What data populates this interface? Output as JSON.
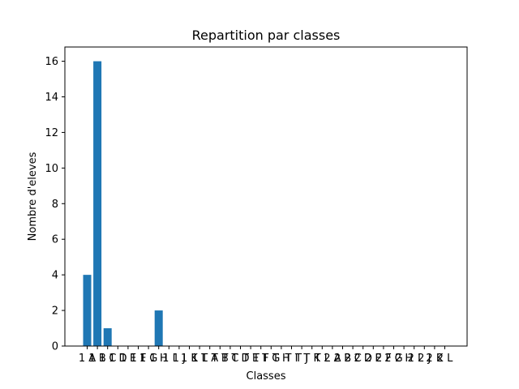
{
  "chart_data": {
    "type": "bar",
    "title": "Repartition par classes",
    "xlabel": "Classes",
    "ylabel": "Nombre d'eleves",
    "ylim": [
      0,
      16.8
    ],
    "yticks": [
      0,
      2,
      4,
      6,
      8,
      10,
      12,
      14,
      16
    ],
    "grid": false,
    "bar_color": "#1f77b4",
    "categories": [
      "1 A",
      "1 B",
      "1 C",
      "1 D",
      "1 E",
      "1 F",
      "1 G",
      "1 H",
      "1 I",
      "1 J",
      "1 K",
      "1 L",
      "T A",
      "T B",
      "T C",
      "T D",
      "T E",
      "T F",
      "T G",
      "T H",
      "T I",
      "T J",
      "T K",
      "T L",
      "2 A",
      "2 B",
      "2 C",
      "2 D",
      "2 E",
      "2 F",
      "2 G",
      "2 H",
      "2 I",
      "2 J",
      "2 K",
      "2 L"
    ],
    "values": [
      4,
      16,
      1,
      0,
      0,
      0,
      0,
      2,
      0,
      0,
      0,
      0,
      0,
      0,
      0,
      0,
      0,
      0,
      0,
      0,
      0,
      0,
      0,
      0,
      0,
      0,
      0,
      0,
      0,
      0,
      0,
      0,
      0,
      0,
      0,
      0
    ]
  }
}
